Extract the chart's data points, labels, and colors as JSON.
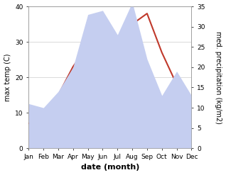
{
  "months": [
    "Jan",
    "Feb",
    "Mar",
    "Apr",
    "May",
    "Jun",
    "Jul",
    "Aug",
    "Sep",
    "Oct",
    "Nov",
    "Dec"
  ],
  "month_indices": [
    1,
    2,
    3,
    4,
    5,
    6,
    7,
    8,
    9,
    10,
    11,
    12
  ],
  "temperature": [
    7,
    9,
    15,
    23,
    29,
    31,
    30,
    35,
    38,
    27,
    18,
    10
  ],
  "precipitation": [
    11,
    10,
    14,
    20,
    33,
    34,
    28,
    36,
    22,
    13,
    19,
    13
  ],
  "temp_color": "#c0392b",
  "precip_color": "#c5cef0",
  "temp_ylim": [
    0,
    40
  ],
  "precip_ylim": [
    0,
    35
  ],
  "temp_yticks": [
    0,
    10,
    20,
    30,
    40
  ],
  "precip_yticks": [
    0,
    5,
    10,
    15,
    20,
    25,
    30,
    35
  ],
  "ylabel_left": "max temp (C)",
  "ylabel_right": "med. precipitation (kg/m2)",
  "xlabel": "date (month)",
  "bg_color": "#ffffff",
  "grid_color": "#cccccc",
  "label_fontsize": 7,
  "tick_fontsize": 6.5
}
